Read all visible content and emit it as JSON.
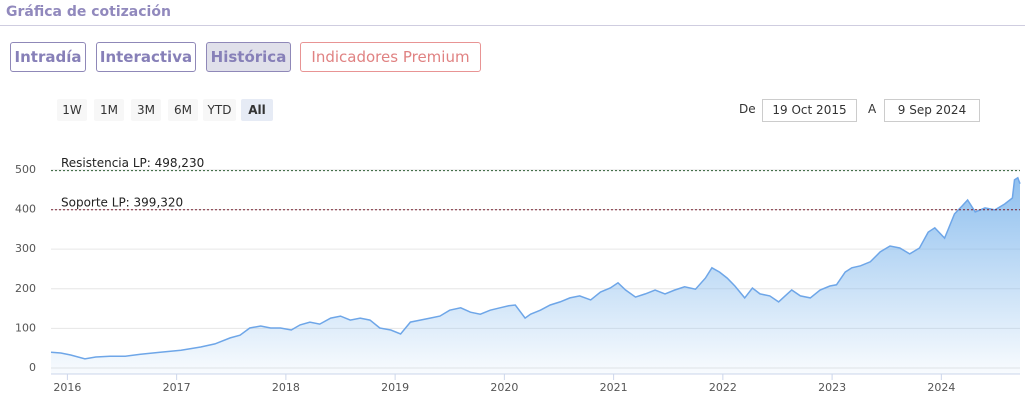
{
  "header": {
    "title": "Gráfica de cotización"
  },
  "tabs": [
    "Intradía",
    "Interactiva",
    "Histórica",
    "Indicadores Premium"
  ],
  "range_buttons": [
    "1W",
    "1M",
    "3M",
    "6M",
    "YTD",
    "All"
  ],
  "date_range": {
    "from_label": "De",
    "from": "19 Oct 2015",
    "to_label": "A",
    "to": "9 Sep 2024"
  },
  "chart_data": {
    "type": "area",
    "x": [
      2015.85,
      2015.94,
      2016.03,
      2016.16,
      2016.26,
      2016.39,
      2016.53,
      2016.67,
      2016.85,
      2017.04,
      2017.22,
      2017.35,
      2017.49,
      2017.58,
      2017.67,
      2017.77,
      2017.86,
      2017.95,
      2018.05,
      2018.13,
      2018.22,
      2018.31,
      2018.41,
      2018.5,
      2018.59,
      2018.68,
      2018.77,
      2018.86,
      2018.96,
      2019.05,
      2019.14,
      2019.23,
      2019.32,
      2019.41,
      2019.5,
      2019.6,
      2019.69,
      2019.78,
      2019.87,
      2019.96,
      2020.04,
      2020.1,
      2020.19,
      2020.24,
      2020.33,
      2020.42,
      2020.51,
      2020.6,
      2020.69,
      2020.79,
      2020.88,
      2020.97,
      2021.04,
      2021.11,
      2021.2,
      2021.29,
      2021.38,
      2021.47,
      2021.56,
      2021.65,
      2021.75,
      2021.84,
      2021.9,
      2021.97,
      2022.04,
      2022.11,
      2022.2,
      2022.27,
      2022.34,
      2022.43,
      2022.51,
      2022.57,
      2022.63,
      2022.71,
      2022.8,
      2022.89,
      2022.98,
      2023.04,
      2023.12,
      2023.18,
      2023.26,
      2023.35,
      2023.44,
      2023.53,
      2023.62,
      2023.71,
      2023.8,
      2023.88,
      2023.94,
      2024.03,
      2024.12,
      2024.19,
      2024.24,
      2024.31,
      2024.4,
      2024.49,
      2024.58,
      2024.65,
      2024.67,
      2024.7,
      2024.72
    ],
    "series": [
      {
        "color": "#6ea6e8",
        "values": [
          40,
          38,
          33,
          23,
          28,
          30,
          30,
          35,
          40,
          45,
          53,
          61,
          76,
          83,
          101,
          106,
          101,
          101,
          96,
          109,
          116,
          111,
          126,
          131,
          121,
          126,
          121,
          101,
          96,
          86,
          116,
          121,
          126,
          131,
          146,
          152,
          141,
          136,
          146,
          152,
          157,
          159,
          126,
          136,
          146,
          159,
          167,
          177,
          182,
          172,
          192,
          202,
          215,
          197,
          179,
          187,
          197,
          187,
          197,
          205,
          199,
          227,
          253,
          242,
          227,
          207,
          177,
          202,
          187,
          182,
          167,
          182,
          197,
          182,
          177,
          197,
          207,
          210,
          242,
          253,
          258,
          268,
          293,
          308,
          303,
          288,
          303,
          343,
          354,
          328,
          389,
          409,
          424,
          394,
          404,
          399,
          414,
          429,
          475,
          480,
          465
        ]
      }
    ],
    "xlim": [
      2015.85,
      2024.72
    ],
    "xticks": [
      2016,
      2017,
      2018,
      2019,
      2020,
      2021,
      2022,
      2023,
      2024
    ],
    "ylim": [
      -15,
      530
    ],
    "yticks": [
      0,
      100,
      200,
      300,
      400,
      500
    ],
    "grid": true,
    "plot_lines": [
      {
        "label": "Resistencia LP: 498,230",
        "value": 498.23,
        "color": "#2f5f35"
      },
      {
        "label": "Soporte LP: 399,320",
        "value": 399.32,
        "color": "#7a2030"
      }
    ]
  }
}
